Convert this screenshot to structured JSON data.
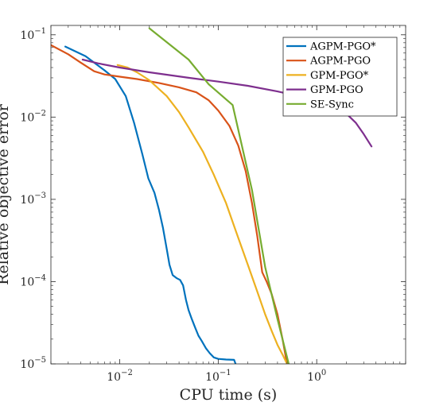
{
  "chart_data": {
    "type": "line",
    "xlabel": "CPU time (s)",
    "ylabel": "Relative objective error",
    "xscale": "log",
    "yscale": "log",
    "xlim": [
      0.002,
      8
    ],
    "ylim": [
      1e-05,
      0.13
    ],
    "xticks": [
      {
        "value": 0.01,
        "base": "10",
        "exp": "−2"
      },
      {
        "value": 0.1,
        "base": "10",
        "exp": "−1"
      },
      {
        "value": 1,
        "base": "10",
        "exp": "0"
      }
    ],
    "yticks": [
      {
        "value": 0.1,
        "base": "10",
        "exp": "−1"
      },
      {
        "value": 0.01,
        "base": "10",
        "exp": "−2"
      },
      {
        "value": 0.001,
        "base": "10",
        "exp": "−3"
      },
      {
        "value": 0.0001,
        "base": "10",
        "exp": "−4"
      },
      {
        "value": 1e-05,
        "base": "10",
        "exp": "−5"
      }
    ],
    "grid": false,
    "legend_position": "top-right",
    "series": [
      {
        "name": "AGPM-PGO*",
        "color": "#0072BD",
        "points": [
          [
            0.0028,
            0.072
          ],
          [
            0.0045,
            0.055
          ],
          [
            0.007,
            0.037
          ],
          [
            0.009,
            0.029
          ],
          [
            0.0115,
            0.018
          ],
          [
            0.014,
            0.0085
          ],
          [
            0.017,
            0.0035
          ],
          [
            0.0195,
            0.0018
          ],
          [
            0.0225,
            0.0012
          ],
          [
            0.025,
            0.00075
          ],
          [
            0.0275,
            0.00045
          ],
          [
            0.03,
            0.00025
          ],
          [
            0.032,
            0.00016
          ],
          [
            0.0345,
            0.00012
          ],
          [
            0.038,
            0.00011
          ],
          [
            0.041,
            0.000105
          ],
          [
            0.044,
            9e-05
          ],
          [
            0.047,
            6e-05
          ],
          [
            0.05,
            4.5e-05
          ],
          [
            0.054,
            3.5e-05
          ],
          [
            0.058,
            2.8e-05
          ],
          [
            0.063,
            2.2e-05
          ],
          [
            0.068,
            1.9e-05
          ],
          [
            0.075,
            1.55e-05
          ],
          [
            0.082,
            1.35e-05
          ],
          [
            0.09,
            1.2e-05
          ],
          [
            0.1,
            1.15e-05
          ],
          [
            0.12,
            1.13e-05
          ],
          [
            0.145,
            1.12e-05
          ],
          [
            0.15,
            1e-05
          ]
        ]
      },
      {
        "name": "AGPM-PGO",
        "color": "#D95319",
        "points": [
          [
            0.002,
            0.075
          ],
          [
            0.003,
            0.058
          ],
          [
            0.004,
            0.046
          ],
          [
            0.0055,
            0.036
          ],
          [
            0.007,
            0.033
          ],
          [
            0.01,
            0.031
          ],
          [
            0.015,
            0.029
          ],
          [
            0.025,
            0.026
          ],
          [
            0.04,
            0.023
          ],
          [
            0.06,
            0.02
          ],
          [
            0.08,
            0.016
          ],
          [
            0.1,
            0.012
          ],
          [
            0.13,
            0.0078
          ],
          [
            0.16,
            0.0045
          ],
          [
            0.19,
            0.0022
          ],
          [
            0.22,
            0.0009
          ],
          [
            0.25,
            0.00035
          ],
          [
            0.28,
            0.00013
          ],
          [
            0.31,
            0.0001
          ],
          [
            0.35,
            7e-05
          ],
          [
            0.4,
            4e-05
          ],
          [
            0.45,
            2e-05
          ],
          [
            0.5,
            1e-05
          ]
        ]
      },
      {
        "name": "GPM-PGO*",
        "color": "#EDB120",
        "points": [
          [
            0.0095,
            0.043
          ],
          [
            0.012,
            0.04
          ],
          [
            0.015,
            0.035
          ],
          [
            0.02,
            0.028
          ],
          [
            0.03,
            0.018
          ],
          [
            0.04,
            0.0115
          ],
          [
            0.05,
            0.0075
          ],
          [
            0.07,
            0.0038
          ],
          [
            0.09,
            0.002
          ],
          [
            0.12,
            0.0009
          ],
          [
            0.15,
            0.00042
          ],
          [
            0.2,
            0.00016
          ],
          [
            0.25,
            7.5e-05
          ],
          [
            0.3,
            4e-05
          ],
          [
            0.35,
            2.5e-05
          ],
          [
            0.4,
            1.7e-05
          ],
          [
            0.45,
            1.3e-05
          ],
          [
            0.5,
            1e-05
          ]
        ]
      },
      {
        "name": "GPM-PGO",
        "color": "#7E2F8E",
        "points": [
          [
            0.0042,
            0.05
          ],
          [
            0.006,
            0.045
          ],
          [
            0.01,
            0.04
          ],
          [
            0.02,
            0.035
          ],
          [
            0.05,
            0.03
          ],
          [
            0.1,
            0.027
          ],
          [
            0.2,
            0.024
          ],
          [
            0.4,
            0.0205
          ],
          [
            0.8,
            0.017
          ],
          [
            1.2,
            0.0155
          ],
          [
            1.6,
            0.0135
          ],
          [
            2,
            0.011
          ],
          [
            2.5,
            0.0085
          ],
          [
            3,
            0.0062
          ],
          [
            3.6,
            0.0044
          ]
        ]
      },
      {
        "name": "SE-Sync",
        "color": "#77AC30",
        "points": [
          [
            0.02,
            0.12
          ],
          [
            0.05,
            0.05
          ],
          [
            0.08,
            0.025
          ],
          [
            0.14,
            0.014
          ],
          [
            0.22,
            0.0013
          ],
          [
            0.3,
            0.00015
          ],
          [
            0.4,
            3.5e-05
          ],
          [
            0.52,
            1e-05
          ]
        ]
      }
    ]
  }
}
